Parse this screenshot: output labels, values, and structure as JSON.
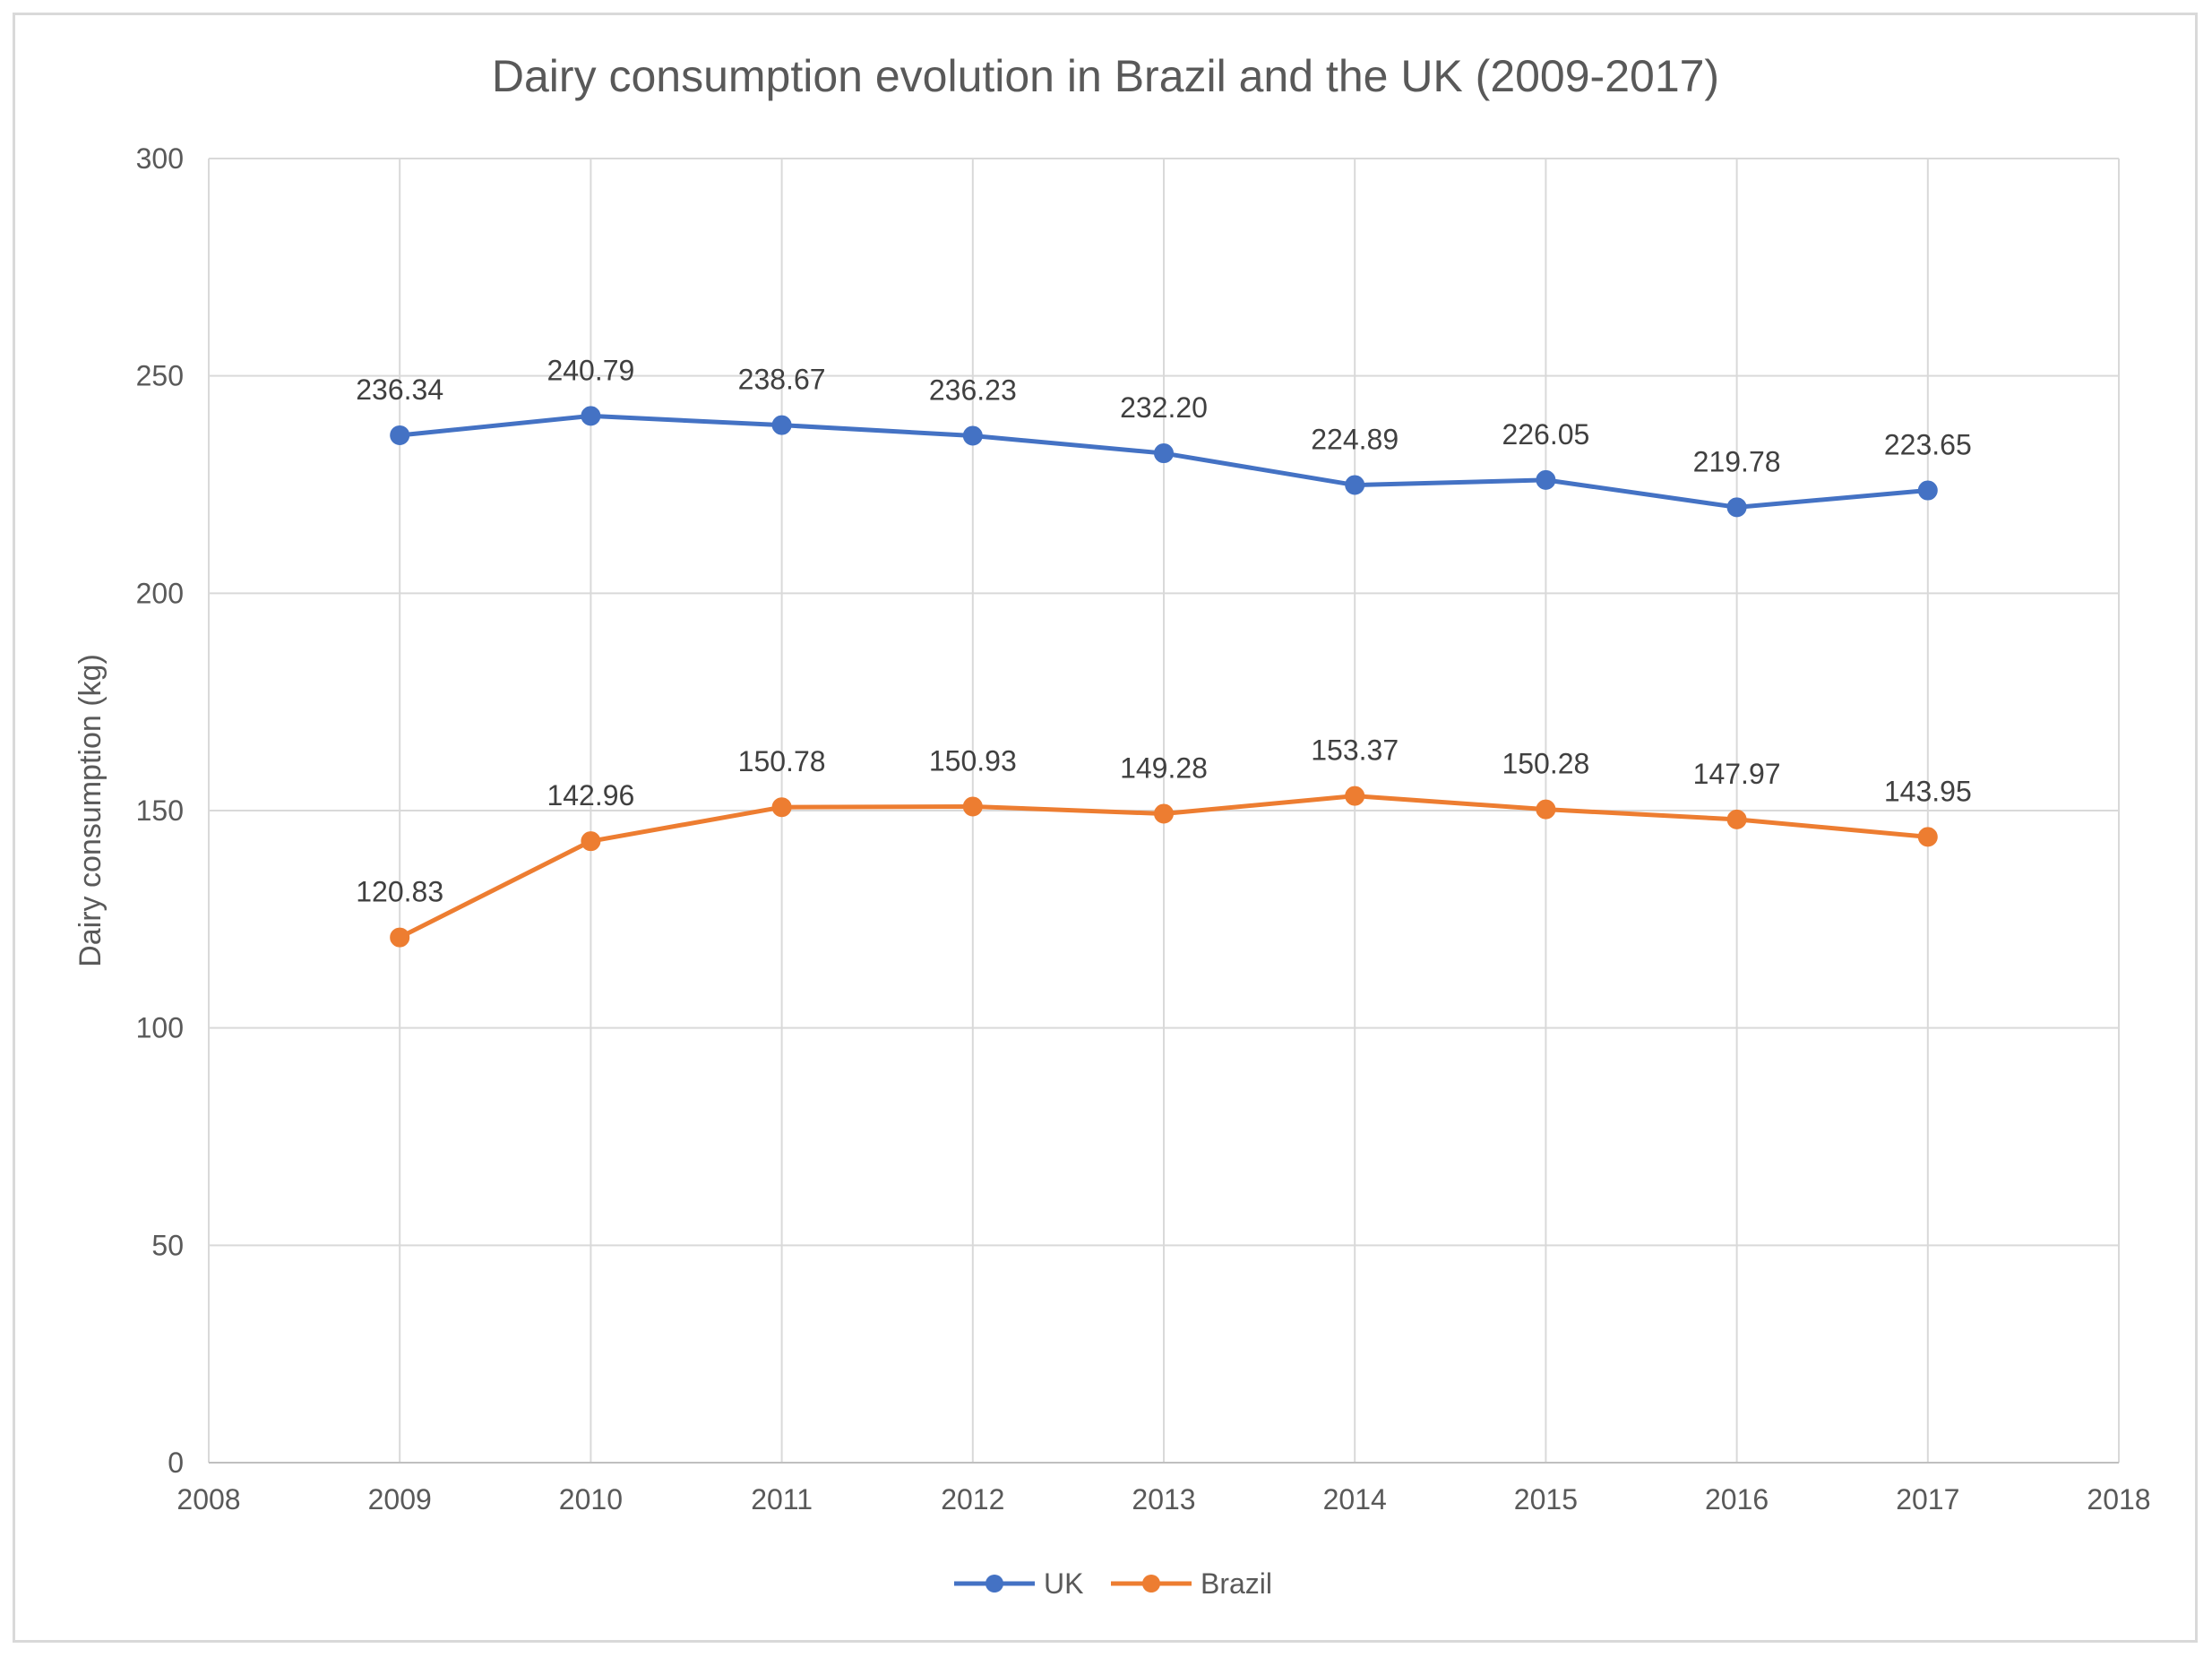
{
  "chart_data": {
    "type": "line",
    "title": "Dairy consumption evolution in Brazil and the UK (2009-2017)",
    "xlabel": "",
    "ylabel": "Dairy consumption (kg)",
    "xlim": [
      2008,
      2018
    ],
    "ylim": [
      0,
      300
    ],
    "x_ticks": [
      "2008",
      "2009",
      "2010",
      "2011",
      "2012",
      "2013",
      "2014",
      "2015",
      "2016",
      "2017",
      "2018"
    ],
    "y_ticks": [
      "0",
      "50",
      "100",
      "150",
      "200",
      "250",
      "300"
    ],
    "grid": true,
    "legend_position": "bottom",
    "x": [
      2009,
      2010,
      2011,
      2012,
      2013,
      2014,
      2015,
      2016,
      2017
    ],
    "series": [
      {
        "name": "UK",
        "color": "#4472c4",
        "values": [
          236.34,
          240.79,
          238.67,
          236.23,
          232.2,
          224.89,
          226.05,
          219.78,
          223.65
        ],
        "labels": [
          "236.34",
          "240.79",
          "238.67",
          "236.23",
          "232.20",
          "224.89",
          "226.05",
          "219.78",
          "223.65"
        ]
      },
      {
        "name": "Brazil",
        "color": "#ed7d31",
        "values": [
          120.83,
          142.96,
          150.78,
          150.93,
          149.28,
          153.37,
          150.28,
          147.97,
          143.95
        ],
        "labels": [
          "120.83",
          "142.96",
          "150.78",
          "150.93",
          "149.28",
          "153.37",
          "150.28",
          "147.97",
          "143.95"
        ]
      }
    ]
  }
}
